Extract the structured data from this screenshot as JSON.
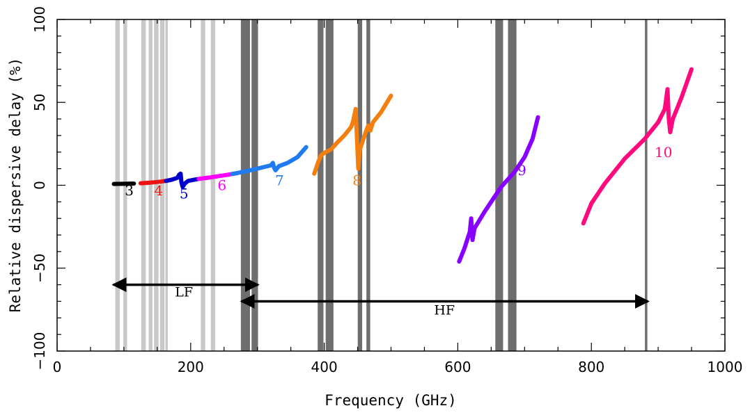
{
  "chart_data": {
    "type": "line",
    "xlabel": "Frequency (GHz)",
    "ylabel": "Relative dispersive delay (%)",
    "xlim": [
      0,
      1000
    ],
    "ylim": [
      -100,
      100
    ],
    "x_ticks": [
      "0",
      "200",
      "400",
      "600",
      "800",
      "1000"
    ],
    "y_ticks": [
      "−100",
      "−50",
      "0",
      "50",
      "100"
    ],
    "grid": false,
    "absorption_lines": {
      "light": {
        "color": "#c8c8c8",
        "x": [
          89,
          92,
          101,
          103,
          128,
          131,
          139,
          141,
          147,
          150,
          156,
          159,
          164,
          217,
          220,
          232,
          235
        ]
      },
      "dark": {
        "color": "#6e6e6e",
        "x": [
          277,
          279,
          281,
          283,
          285,
          287,
          293,
          295,
          297,
          299,
          392,
          395,
          397,
          404,
          407,
          410,
          412,
          452,
          455,
          465,
          467,
          658,
          660,
          662,
          664,
          666,
          677,
          679,
          681,
          683,
          686,
          882
        ]
      }
    },
    "series": [
      {
        "name": "3",
        "color": "#000000",
        "points": [
          [
            85,
            0.8
          ],
          [
            100,
            0.9
          ],
          [
            115,
            1.0
          ]
        ]
      },
      {
        "name": "4",
        "color": "#ee1111",
        "points": [
          [
            125,
            1.2
          ],
          [
            140,
            1.6
          ],
          [
            155,
            2.2
          ],
          [
            165,
            2.8
          ],
          [
            172,
            3.4
          ]
        ]
      },
      {
        "name": "5",
        "color": "#0000cc",
        "points": [
          [
            163,
            2.6
          ],
          [
            172,
            3.4
          ],
          [
            180,
            4.5
          ],
          [
            183,
            6.5
          ],
          [
            185,
            7.0
          ],
          [
            186,
            2.0
          ],
          [
            188,
            -1.0
          ],
          [
            191,
            1.0
          ],
          [
            196,
            2.6
          ],
          [
            205,
            3.3
          ],
          [
            212,
            3.8
          ]
        ]
      },
      {
        "name": "6",
        "color": "#ff00ff",
        "points": [
          [
            212,
            3.8
          ],
          [
            230,
            4.8
          ],
          [
            250,
            6.0
          ],
          [
            270,
            7.3
          ]
        ]
      },
      {
        "name": "7",
        "color": "#1e7cf0",
        "points": [
          [
            262,
            6.8
          ],
          [
            280,
            8.2
          ],
          [
            300,
            10.0
          ],
          [
            320,
            12.0
          ],
          [
            323,
            13.5
          ],
          [
            325,
            10.5
          ],
          [
            327,
            9.0
          ],
          [
            332,
            11.5
          ],
          [
            345,
            13.5
          ],
          [
            360,
            17.0
          ],
          [
            373,
            23.0
          ]
        ]
      },
      {
        "name": "8",
        "color": "#f47f0e",
        "points": [
          [
            385,
            7.0
          ],
          [
            391,
            14.0
          ],
          [
            395,
            18.0
          ],
          [
            402,
            20.0
          ],
          [
            410,
            21.5
          ],
          [
            420,
            26.0
          ],
          [
            430,
            30.0
          ],
          [
            440,
            35.0
          ],
          [
            443,
            38.0
          ],
          [
            447,
            46.0
          ],
          [
            449,
            28.0
          ],
          [
            451,
            10.0
          ],
          [
            453,
            21.0
          ],
          [
            457,
            26.0
          ],
          [
            463,
            33.0
          ],
          [
            466,
            36.0
          ],
          [
            469,
            33.0
          ],
          [
            473,
            38.0
          ],
          [
            485,
            44.0
          ],
          [
            500,
            54.0
          ]
        ]
      },
      {
        "name": "9",
        "color": "#8800ff",
        "points": [
          [
            602,
            -46.0
          ],
          [
            610,
            -38.0
          ],
          [
            618,
            -28.0
          ],
          [
            620,
            -20.0
          ],
          [
            622,
            -33.0
          ],
          [
            625,
            -26.0
          ],
          [
            640,
            -16.0
          ],
          [
            655,
            -7.0
          ],
          [
            665,
            -1.0
          ],
          [
            685,
            8.0
          ],
          [
            700,
            17.0
          ],
          [
            712,
            28.0
          ],
          [
            720,
            41.0
          ]
        ]
      },
      {
        "name": "10",
        "color": "#ff0a7e",
        "points": [
          [
            788,
            -23.0
          ],
          [
            800,
            -11.0
          ],
          [
            820,
            1.0
          ],
          [
            850,
            16.0
          ],
          [
            880,
            28.0
          ],
          [
            900,
            38.0
          ],
          [
            910,
            46.0
          ],
          [
            914,
            58.0
          ],
          [
            916,
            40.0
          ],
          [
            918,
            32.0
          ],
          [
            922,
            40.0
          ],
          [
            935,
            53.0
          ],
          [
            950,
            70.0
          ]
        ]
      }
    ],
    "series_labels": [
      {
        "text": "3",
        "x": 108,
        "y": -6,
        "color": "#000000"
      },
      {
        "text": "4",
        "x": 152,
        "y": -6,
        "color": "#ee1111"
      },
      {
        "text": "5",
        "x": 190,
        "y": -8,
        "color": "#0000cc"
      },
      {
        "text": "6",
        "x": 247,
        "y": -3,
        "color": "#ff00ff"
      },
      {
        "text": "7",
        "x": 333,
        "y": 0,
        "color": "#1e7cf0"
      },
      {
        "text": "8",
        "x": 449,
        "y": 0,
        "color": "#f47f0e"
      },
      {
        "text": "9",
        "x": 696,
        "y": 6,
        "color": "#8800ff"
      },
      {
        "text": "10",
        "x": 908,
        "y": 17,
        "color": "#ff0a7e"
      }
    ],
    "ranges": [
      {
        "label": "LF",
        "x_from": 84,
        "x_to": 301,
        "y": -60,
        "label_x": 190,
        "label_y": -67
      },
      {
        "label": "HF",
        "x_from": 276,
        "x_to": 885,
        "y": -70,
        "label_x": 580,
        "label_y": -78
      }
    ]
  }
}
